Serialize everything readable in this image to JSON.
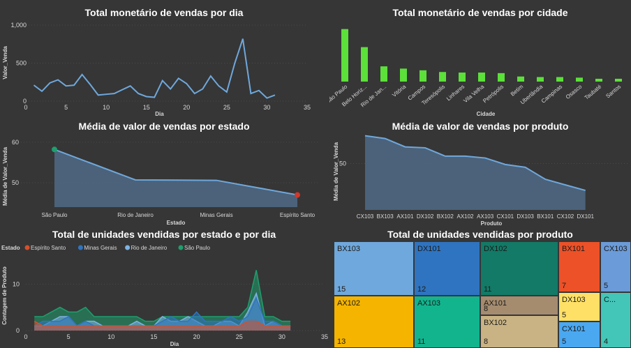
{
  "panels": {
    "p1": {
      "title": "Total monetário de vendas por dia"
    },
    "p2": {
      "title": "Total monetário de vendas por cidade"
    },
    "p3": {
      "title": "Média de valor de vendas por estado"
    },
    "p4": {
      "title": "Média de valor de vendas por produto"
    },
    "p5": {
      "title": "Total de unidades vendidas por estado e por dia"
    },
    "p6": {
      "title": "Total de unidades vendidas por produto"
    }
  },
  "chart_data": [
    {
      "type": "line",
      "title": "Total monetário de vendas por dia",
      "xlabel": "Dia",
      "ylabel": "Valor_Venda",
      "xlim": [
        0,
        35
      ],
      "ylim": [
        0,
        1000
      ],
      "xticks": [
        "0",
        "5",
        "10",
        "15",
        "20",
        "25",
        "30",
        "35"
      ],
      "yticks": [
        "0",
        "500",
        "1,000"
      ],
      "x": [
        1,
        2,
        3,
        4,
        5,
        6,
        7,
        8,
        9,
        10,
        11,
        12,
        13,
        14,
        15,
        16,
        17,
        18,
        19,
        20,
        21,
        22,
        23,
        24,
        25,
        26,
        27,
        28,
        29,
        30,
        31
      ],
      "values": [
        210,
        130,
        240,
        280,
        200,
        210,
        350,
        220,
        80,
        90,
        100,
        150,
        200,
        100,
        60,
        50,
        270,
        160,
        300,
        230,
        100,
        160,
        330,
        200,
        120,
        500,
        820,
        100,
        140,
        40,
        80
      ],
      "color": "#6fa8dc"
    },
    {
      "type": "bar",
      "title": "Total monetário de vendas por cidade",
      "xlabel": "Cidade",
      "ylabel": "",
      "categories": [
        "São Paulo",
        "Belo Horiz...",
        "Rio de Jan...",
        "Vitória",
        "Campos",
        "Teresópolis",
        "Linhares",
        "Vila Velha",
        "Petrópolis",
        "Betim",
        "Uberlândia",
        "Campinas",
        "Osasco",
        "Taubaté",
        "Santos"
      ],
      "values": [
        930,
        610,
        270,
        230,
        200,
        170,
        160,
        160,
        150,
        90,
        80,
        80,
        70,
        50,
        50
      ],
      "ylim": [
        0,
        1000
      ],
      "color": "#5ce03a"
    },
    {
      "type": "area",
      "title": "Média de valor de vendas por estado",
      "xlabel": "Estado",
      "ylabel": "Média de Valor_Venda",
      "categories": [
        "São Paulo",
        "Rio de Janeiro",
        "Minas Gerais",
        "Espírito Santo"
      ],
      "values": [
        58.2,
        50.7,
        50.6,
        47.0
      ],
      "ylim": [
        44,
        61
      ],
      "yticks": [
        "50",
        "60"
      ],
      "color": "#6fa8dc",
      "max_marker_color": "#1f9e6e",
      "min_marker_color": "#d0382b"
    },
    {
      "type": "area",
      "title": "Média de valor de vendas por produto",
      "xlabel": "Produto",
      "ylabel": "Média de Valor_Venda",
      "categories": [
        "CX103",
        "BX103",
        "AX101",
        "DX102",
        "BX102",
        "AX102",
        "AX103",
        "CX101",
        "DX103",
        "BX101",
        "CX102",
        "DX101"
      ],
      "values": [
        80,
        77,
        68,
        67,
        58,
        58,
        56,
        49,
        46,
        33,
        27,
        21
      ],
      "ylim": [
        0,
        85
      ],
      "yticks": [
        "50"
      ],
      "color": "#6fa8dc"
    },
    {
      "type": "area",
      "title": "Total de unidades vendidas por estado e por dia",
      "xlabel": "Dia",
      "ylabel": "Contagem de Produto",
      "legend_title": "Estado",
      "legend": "top-left",
      "xlim": [
        0,
        35
      ],
      "ylim": [
        0,
        15
      ],
      "xticks": [
        "0",
        "5",
        "10",
        "15",
        "20",
        "25",
        "30",
        "35"
      ],
      "yticks": [
        "0",
        "10"
      ],
      "x": [
        1,
        2,
        3,
        4,
        5,
        6,
        7,
        8,
        9,
        10,
        11,
        12,
        13,
        14,
        15,
        16,
        17,
        18,
        19,
        20,
        21,
        22,
        23,
        24,
        25,
        26,
        27,
        28,
        29,
        30,
        31
      ],
      "series": [
        {
          "name": "Espírito Santo",
          "color": "#d4502b",
          "values": [
            2,
            1,
            1,
            1,
            1,
            1,
            1,
            1,
            1,
            1,
            1,
            1,
            1,
            1,
            1,
            1,
            1,
            1,
            1,
            1,
            1,
            1,
            1,
            1,
            1,
            2,
            2,
            1,
            1,
            1,
            1
          ]
        },
        {
          "name": "Minas Gerais",
          "color": "#2f74c0",
          "values": [
            1,
            2,
            2,
            2,
            3,
            1,
            2,
            1,
            1,
            1,
            1,
            1,
            1,
            1,
            1,
            2,
            3,
            2,
            2,
            4,
            2,
            2,
            2,
            3,
            2,
            3,
            7,
            2,
            2,
            1,
            1
          ]
        },
        {
          "name": "Rio de Janeiro",
          "color": "#7fb2e5",
          "values": [
            1,
            1,
            2,
            3,
            3,
            1,
            2,
            2,
            1,
            1,
            1,
            1,
            2,
            1,
            1,
            3,
            2,
            2,
            3,
            2,
            1,
            1,
            2,
            2,
            1,
            4,
            8,
            1,
            2,
            1,
            1
          ]
        },
        {
          "name": "São Paulo",
          "color": "#1f9e6e",
          "values": [
            3,
            3,
            4,
            5,
            4,
            4,
            5,
            3,
            3,
            3,
            3,
            3,
            3,
            2,
            2,
            3,
            3,
            3,
            3,
            3,
            3,
            3,
            3,
            3,
            3,
            5,
            13,
            3,
            3,
            2,
            2
          ]
        }
      ]
    },
    {
      "type": "treemap",
      "title": "Total de unidades vendidas por produto",
      "categories": [
        "BX103",
        "AX102",
        "DX101",
        "AX103",
        "DX102",
        "AX101",
        "BX102",
        "BX101",
        "DX103",
        "CX101",
        "CX103",
        "C..."
      ],
      "values": [
        15,
        13,
        12,
        11,
        11,
        8,
        8,
        7,
        5,
        5,
        5,
        4
      ],
      "colors": [
        "#6fa8dc",
        "#f4b400",
        "#2f74c0",
        "#12b48e",
        "#127a66",
        "#a58c6f",
        "#c9b384",
        "#ec5128",
        "#ffe066",
        "#4aa8f0",
        "#6b9bd8",
        "#43c6b8"
      ]
    }
  ]
}
